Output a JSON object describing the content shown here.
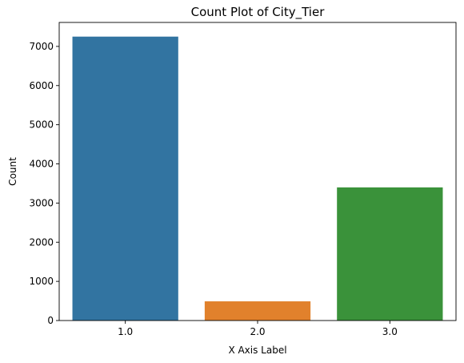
{
  "chart_data": {
    "type": "bar",
    "title": "Count Plot of City_Tier",
    "xlabel": "X Axis Label",
    "ylabel": "Count",
    "categories": [
      "1.0",
      "2.0",
      "3.0"
    ],
    "values": [
      7250,
      490,
      3400
    ],
    "colors": [
      "#3274a1",
      "#e1812c",
      "#3a923a"
    ],
    "ylim": [
      0,
      7612
    ],
    "yticks": [
      0,
      1000,
      2000,
      3000,
      4000,
      5000,
      6000,
      7000
    ],
    "grid": false,
    "legend": "none"
  }
}
